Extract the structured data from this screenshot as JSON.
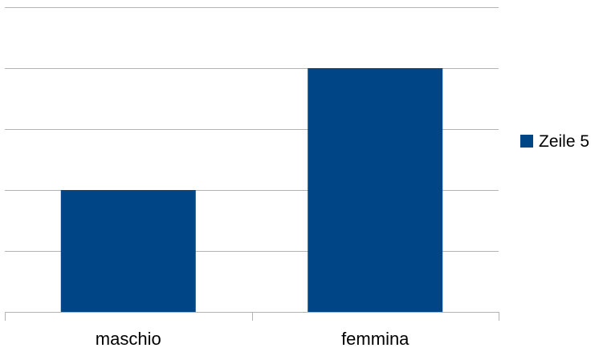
{
  "chart_data": {
    "type": "bar",
    "categories": [
      "maschio",
      "femmina"
    ],
    "series": [
      {
        "name": "Zeile 5",
        "values": [
          2,
          4
        ],
        "color": "#004586"
      }
    ],
    "ylim": [
      0,
      5
    ],
    "grid": true,
    "legend_position": "right",
    "title": "",
    "xlabel": "",
    "ylabel": ""
  }
}
